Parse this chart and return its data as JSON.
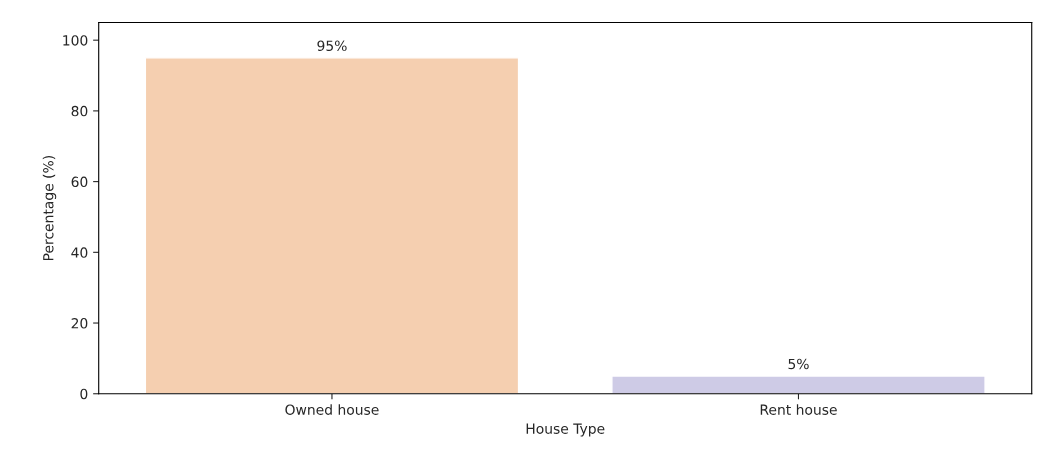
{
  "chart_data": {
    "type": "bar",
    "categories": [
      "Owned house",
      "Rent house"
    ],
    "values": [
      95,
      5
    ],
    "value_labels": [
      "95%",
      "5%"
    ],
    "colors": [
      "#f5cfb0",
      "#cecbe6"
    ],
    "xlabel": "House Type",
    "ylabel": "Percentage (%)",
    "ylim": [
      0,
      105
    ],
    "yticks": [
      0,
      20,
      40,
      60,
      80,
      100
    ],
    "grid": false
  }
}
